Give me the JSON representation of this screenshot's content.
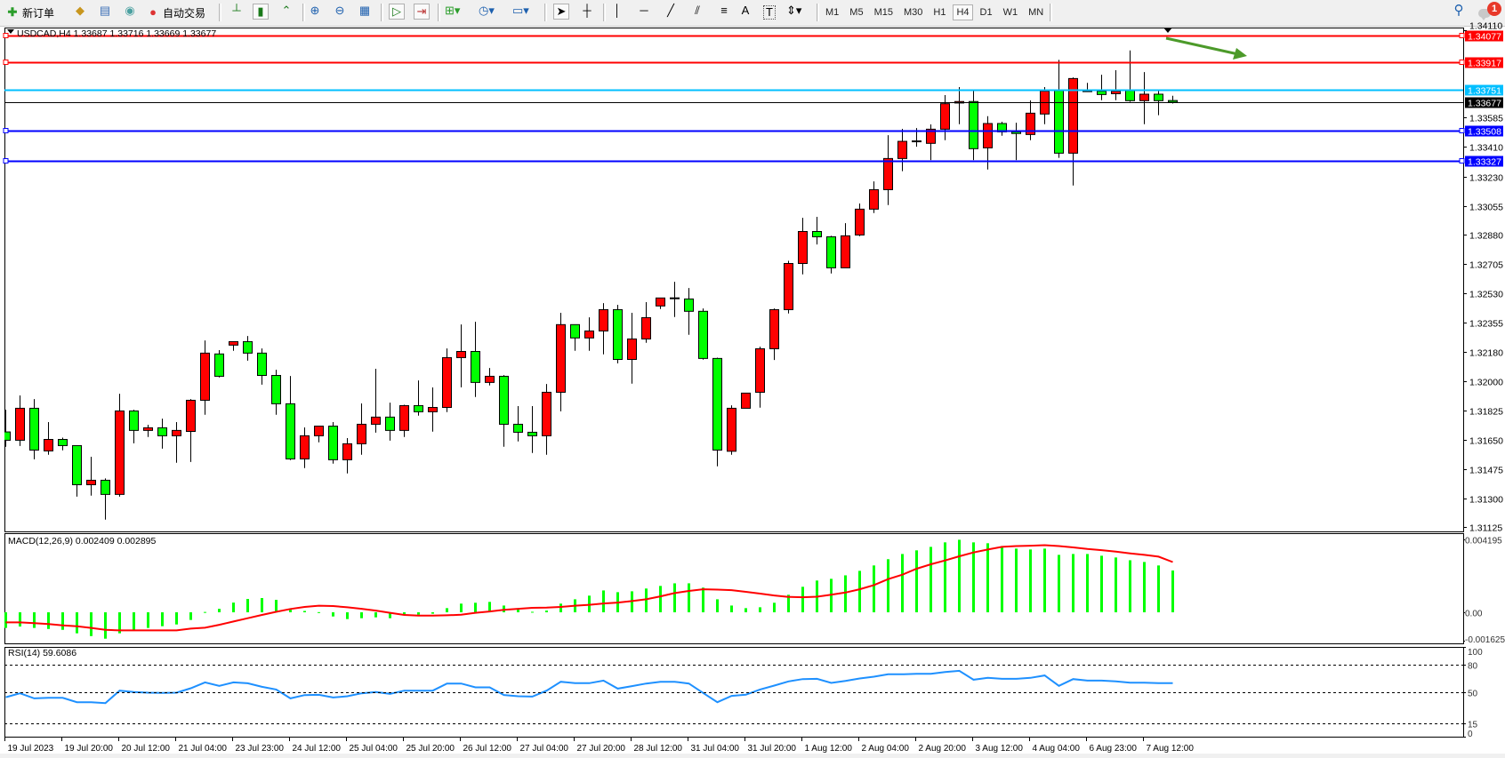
{
  "toolbar": {
    "new_order_label": "新订单",
    "auto_trading_label": "自动交易",
    "timeframes": [
      "M1",
      "M5",
      "M15",
      "M30",
      "H1",
      "H4",
      "D1",
      "W1",
      "MN"
    ],
    "active_timeframe": "H4",
    "notification_count": "1",
    "icons": [
      "new-order-icon",
      "gold-bar-icon",
      "data-window-icon",
      "signals-icon",
      "auto-trading-icon",
      "bar-chart-icon",
      "candlestick-icon",
      "line-chart-icon",
      "zoom-in-icon",
      "zoom-out-icon",
      "tile-windows-icon",
      "auto-scroll-icon",
      "chart-shift-icon",
      "indicators-icon",
      "periods-icon",
      "templates-icon",
      "cursor-icon",
      "crosshair-icon",
      "vertical-line-icon",
      "horizontal-line-icon",
      "trendline-icon",
      "equidistant-channel-icon",
      "fibonacci-icon",
      "text-icon",
      "text-label-icon",
      "arrows-icon",
      "search-icon",
      "notification-icon"
    ],
    "text_tool_label": "A",
    "label_tool_label": "T"
  },
  "chart_header": "USDCAD,H4  1.33687 1.33716 1.33669 1.33677",
  "macd_header": "MACD(12,26,9) 0.002409 0.002895",
  "rsi_header": "RSI(14) 59.6086",
  "chart_data": {
    "type": "candlestick",
    "symbol": "USDCAD",
    "timeframe": "H4",
    "bull_color": "#ff0000",
    "bear_color": "#00ff00",
    "ylim": [
      1.31101,
      1.34125
    ],
    "candles_ohlc": [
      [
        1.31698,
        1.31831,
        1.31609,
        1.31648
      ],
      [
        1.31648,
        1.31917,
        1.31614,
        1.3184
      ],
      [
        1.3184,
        1.31895,
        1.31534,
        1.31589
      ],
      [
        1.31584,
        1.31757,
        1.31561,
        1.31653
      ],
      [
        1.31653,
        1.31664,
        1.31588,
        1.31616
      ],
      [
        1.31616,
        1.31616,
        1.3131,
        1.31381
      ],
      [
        1.31381,
        1.31549,
        1.31316,
        1.31408
      ],
      [
        1.31408,
        1.31419,
        1.31172,
        1.31323
      ],
      [
        1.31323,
        1.31927,
        1.3131,
        1.31824
      ],
      [
        1.31824,
        1.31831,
        1.3163,
        1.31707
      ],
      [
        1.31707,
        1.31741,
        1.31668,
        1.31723
      ],
      [
        1.31723,
        1.31778,
        1.31598,
        1.31675
      ],
      [
        1.31675,
        1.31757,
        1.31513,
        1.31707
      ],
      [
        1.31701,
        1.31895,
        1.31518,
        1.31888
      ],
      [
        1.31888,
        1.32247,
        1.31801,
        1.32171
      ],
      [
        1.32166,
        1.32189,
        1.32025,
        1.32032
      ],
      [
        1.32219,
        1.3224,
        1.32185,
        1.3224
      ],
      [
        1.3224,
        1.32274,
        1.32126,
        1.32171
      ],
      [
        1.32171,
        1.32199,
        1.31982,
        1.32037
      ],
      [
        1.32037,
        1.32071,
        1.31801,
        1.31867
      ],
      [
        1.31867,
        1.32034,
        1.31529,
        1.31536
      ],
      [
        1.31536,
        1.31725,
        1.31481,
        1.31675
      ],
      [
        1.31675,
        1.31733,
        1.31636,
        1.31733
      ],
      [
        1.31733,
        1.31757,
        1.31508,
        1.31531
      ],
      [
        1.31531,
        1.31661,
        1.31449,
        1.31627
      ],
      [
        1.31627,
        1.31869,
        1.31561,
        1.31744
      ],
      [
        1.31744,
        1.32077,
        1.31694,
        1.31787
      ],
      [
        1.31787,
        1.31874,
        1.31646,
        1.31707
      ],
      [
        1.31707,
        1.31861,
        1.31668,
        1.31856
      ],
      [
        1.31856,
        1.32007,
        1.31796,
        1.31819
      ],
      [
        1.31819,
        1.31965,
        1.317,
        1.31845
      ],
      [
        1.31845,
        1.32199,
        1.31817,
        1.32144
      ],
      [
        1.32144,
        1.32343,
        1.31966,
        1.32181
      ],
      [
        1.32181,
        1.32359,
        1.31908,
        1.31995
      ],
      [
        1.31995,
        1.32082,
        1.31977,
        1.32032
      ],
      [
        1.32032,
        1.32039,
        1.31609,
        1.31744
      ],
      [
        1.31744,
        1.31853,
        1.31641,
        1.31696
      ],
      [
        1.31696,
        1.31853,
        1.31572,
        1.31675
      ],
      [
        1.31675,
        1.31986,
        1.31561,
        1.31936
      ],
      [
        1.31936,
        1.32413,
        1.31822,
        1.32342
      ],
      [
        1.32342,
        1.32342,
        1.32185,
        1.32262
      ],
      [
        1.32262,
        1.32386,
        1.32185,
        1.32304
      ],
      [
        1.32304,
        1.32471,
        1.32164,
        1.32432
      ],
      [
        1.32432,
        1.32461,
        1.3211,
        1.32133
      ],
      [
        1.32133,
        1.32413,
        1.31988,
        1.32256
      ],
      [
        1.32256,
        1.32477,
        1.32233,
        1.32384
      ],
      [
        1.32454,
        1.32502,
        1.32436,
        1.32502
      ],
      [
        1.325,
        1.32599,
        1.32388,
        1.325
      ],
      [
        1.32496,
        1.32562,
        1.32281,
        1.32422
      ],
      [
        1.32422,
        1.32439,
        1.32132,
        1.32139
      ],
      [
        1.32139,
        1.32144,
        1.31492,
        1.31589
      ],
      [
        1.31582,
        1.31858,
        1.31561,
        1.3184
      ],
      [
        1.3184,
        1.31931,
        1.3184,
        1.31931
      ],
      [
        1.31936,
        1.3221,
        1.31844,
        1.32197
      ],
      [
        1.32197,
        1.32439,
        1.3213,
        1.32432
      ],
      [
        1.32432,
        1.32725,
        1.32409,
        1.32709
      ],
      [
        1.32709,
        1.32983,
        1.32644,
        1.32901
      ],
      [
        1.32901,
        1.32989,
        1.32823,
        1.32869
      ],
      [
        1.32869,
        1.32875,
        1.32649,
        1.32683
      ],
      [
        1.32683,
        1.32951,
        1.32683,
        1.32875
      ],
      [
        1.3288,
        1.33069,
        1.32873,
        1.33035
      ],
      [
        1.33035,
        1.33202,
        1.33012,
        1.33152
      ],
      [
        1.33152,
        1.33479,
        1.3306,
        1.33339
      ],
      [
        1.33339,
        1.33517,
        1.33263,
        1.33442
      ],
      [
        1.33442,
        1.33522,
        1.3341,
        1.33439
      ],
      [
        1.3343,
        1.33544,
        1.3333,
        1.33515
      ],
      [
        1.33515,
        1.3372,
        1.33449,
        1.33668
      ],
      [
        1.33672,
        1.33768,
        1.33545,
        1.33681
      ],
      [
        1.33681,
        1.33746,
        1.3333,
        1.33398
      ],
      [
        1.33403,
        1.33593,
        1.33273,
        1.33549
      ],
      [
        1.33549,
        1.3356,
        1.33476,
        1.33499
      ],
      [
        1.33499,
        1.33554,
        1.3333,
        1.33489
      ],
      [
        1.33483,
        1.33688,
        1.33449,
        1.33611
      ],
      [
        1.33606,
        1.33768,
        1.33545,
        1.33743
      ],
      [
        1.33746,
        1.33931,
        1.33343,
        1.33371
      ],
      [
        1.33371,
        1.33826,
        1.33177,
        1.33819
      ],
      [
        1.33743,
        1.33793,
        1.33739,
        1.33739
      ],
      [
        1.33743,
        1.33842,
        1.33689,
        1.33723
      ],
      [
        1.33728,
        1.33869,
        1.33689,
        1.33743
      ],
      [
        1.33746,
        1.33988,
        1.33679,
        1.33686
      ],
      [
        1.33686,
        1.33858,
        1.33545,
        1.33725
      ],
      [
        1.33725,
        1.33746,
        1.33599,
        1.33686
      ],
      [
        1.33687,
        1.33716,
        1.33669,
        1.33677
      ]
    ],
    "levels": [
      {
        "price": "1.34077",
        "color": "#ff0000",
        "handle": true
      },
      {
        "price": "1.33917",
        "color": "#ff0000",
        "handle": true
      },
      {
        "price": "1.33751",
        "color": "#00bfff",
        "handle": false
      },
      {
        "price": "1.33677",
        "color": "#000000",
        "handle": false
      },
      {
        "price": "1.33508",
        "color": "#0000ff",
        "handle": true
      },
      {
        "price": "1.33327",
        "color": "#0000ff",
        "handle": true
      }
    ],
    "price_ticks": [
      "1.34110",
      "1.33585",
      "1.33410",
      "1.33230",
      "1.33055",
      "1.32880",
      "1.32705",
      "1.32530",
      "1.32355",
      "1.32180",
      "1.32000",
      "1.31825",
      "1.31650",
      "1.31475",
      "1.31300",
      "1.31125"
    ],
    "time_labels": [
      "19 Jul 2023",
      "19 Jul 20:00",
      "20 Jul 12:00",
      "21 Jul 04:00",
      "23 Jul 23:00",
      "24 Jul 12:00",
      "25 Jul 04:00",
      "25 Jul 20:00",
      "26 Jul 12:00",
      "27 Jul 04:00",
      "27 Jul 20:00",
      "28 Jul 12:00",
      "31 Jul 04:00",
      "31 Jul 20:00",
      "1 Aug 12:00",
      "2 Aug 04:00",
      "2 Aug 20:00",
      "3 Aug 12:00",
      "4 Aug 04:00",
      "6 Aug 23:00",
      "7 Aug 12:00"
    ],
    "annotation_arrow_color": "#4c9a2a",
    "macd": {
      "ylim": [
        -0.00179,
        0.00456
      ],
      "axis_labels": [
        "0.004195",
        "0.00",
        "-0.001625"
      ],
      "histogram_color": "#00ff00",
      "signal_color": "#ff0000",
      "histogram": [
        -0.0009,
        -0.00082,
        -0.0009,
        -0.00096,
        -0.00101,
        -0.00121,
        -0.00137,
        -0.00152,
        -0.00121,
        -0.00101,
        -0.0009,
        -0.0008,
        -0.0007,
        -0.00044,
        2e-05,
        0.0002,
        0.00056,
        0.00077,
        0.00082,
        0.00072,
        0.00015,
        8e-05,
        1e-05,
        -0.00024,
        -0.00039,
        -0.00034,
        -0.00029,
        -0.00034,
        -0.00017,
        -0.00014,
        -8e-05,
        0.00024,
        0.0005,
        0.00055,
        0.0006,
        0.00039,
        0.00017,
        3e-05,
        0.0001,
        0.0005,
        0.00075,
        0.00096,
        0.00126,
        0.00116,
        0.00121,
        0.00137,
        0.00152,
        0.00167,
        0.00167,
        0.00142,
        0.00075,
        0.00039,
        0.00024,
        0.00029,
        0.00055,
        0.00101,
        0.00147,
        0.00183,
        0.00193,
        0.00213,
        0.00239,
        0.0027,
        0.00306,
        0.00336,
        0.00357,
        0.00377,
        0.00403,
        0.00418,
        0.00403,
        0.00398,
        0.00382,
        0.00367,
        0.00362,
        0.00367,
        0.00331,
        0.00336,
        0.00336,
        0.00326,
        0.00316,
        0.003,
        0.0029,
        0.0027,
        0.002409
      ],
      "signal": [
        -0.00058,
        -0.00058,
        -0.00063,
        -0.00068,
        -0.00075,
        -0.0008,
        -0.0009,
        -0.00101,
        -0.00104,
        -0.00104,
        -0.00104,
        -0.00104,
        -0.00104,
        -0.00094,
        -0.00089,
        -0.00072,
        -0.00053,
        -0.00034,
        -0.00015,
        3e-05,
        0.00019,
        0.00031,
        0.00038,
        0.00036,
        0.00029,
        0.0002,
        0.0001,
        -3e-05,
        -0.00015,
        -0.00019,
        -0.00019,
        -0.00017,
        -0.00014,
        -3e-05,
        5e-05,
        0.00014,
        0.0002,
        0.00026,
        0.00027,
        0.00031,
        0.00038,
        0.00043,
        0.00051,
        0.00056,
        0.00065,
        0.00075,
        0.00092,
        0.00111,
        0.00123,
        0.00133,
        0.00131,
        0.00128,
        0.00118,
        0.00108,
        0.00097,
        0.00089,
        0.00087,
        0.0009,
        0.00101,
        0.00114,
        0.00133,
        0.00157,
        0.00191,
        0.00217,
        0.00251,
        0.00277,
        0.00299,
        0.00323,
        0.00345,
        0.00362,
        0.00377,
        0.00382,
        0.00384,
        0.00387,
        0.00382,
        0.00374,
        0.00365,
        0.00358,
        0.0035,
        0.0034,
        0.00331,
        0.00321,
        0.002895
      ]
    },
    "rsi": {
      "ylim": [
        0,
        100
      ],
      "axis_labels": [
        "100",
        "80",
        "50",
        "15",
        "0"
      ],
      "levels": [
        80,
        50,
        15
      ],
      "line_color": "#1e90ff",
      "values": [
        44,
        48.3,
        42.7,
        43.3,
        43.3,
        38.4,
        38.4,
        37.4,
        51.3,
        49.7,
        49,
        48.7,
        49,
        54,
        60.5,
        56.5,
        60.5,
        59.5,
        55.5,
        52.6,
        42.7,
        46.3,
        46.6,
        43.7,
        45,
        48.3,
        49.7,
        47.7,
        51.3,
        51.3,
        51.3,
        59.2,
        59.2,
        55,
        55,
        46.4,
        45,
        44.7,
        51.3,
        61.2,
        59.6,
        59.6,
        62.5,
        53.6,
        56.3,
        59.2,
        61.2,
        61.2,
        59.2,
        48.7,
        38.4,
        45.4,
        46.7,
        52.6,
        56.9,
        61.6,
        64.2,
        64.5,
        59.9,
        62.2,
        64.9,
        66.8,
        69.5,
        69.5,
        70.1,
        70.1,
        72.1,
        73.4,
        63.5,
        65.5,
        64.5,
        64.5,
        65.5,
        68.2,
        56.6,
        64.2,
        62.5,
        62.5,
        61.6,
        60.2,
        60.2,
        59.6,
        59.6086
      ]
    }
  }
}
